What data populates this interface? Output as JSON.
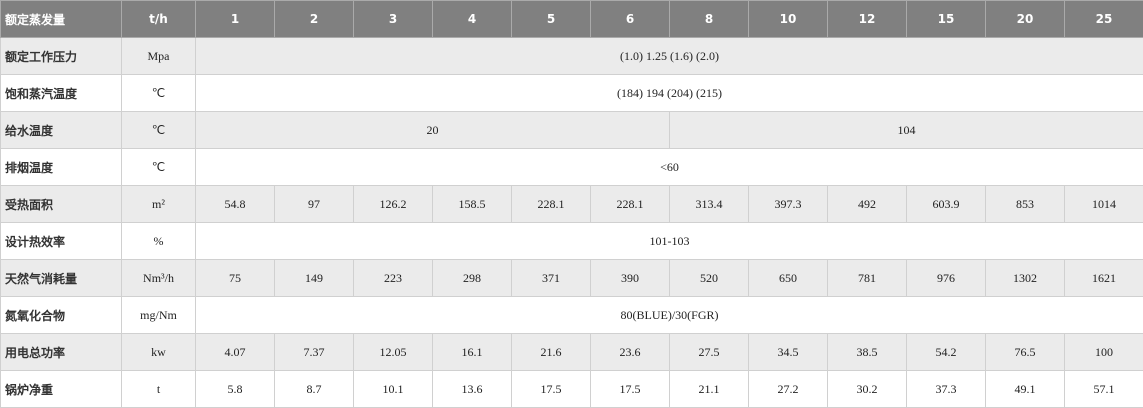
{
  "table": {
    "header": [
      "额定蒸发量",
      "t/h",
      "1",
      "2",
      "3",
      "4",
      "5",
      "6",
      "8",
      "10",
      "12",
      "15",
      "20",
      "25"
    ],
    "rows": [
      [
        "额定工作压力",
        "Mpa",
        "(1.0) 1.25 (1.6) (2.0)"
      ],
      [
        "饱和蒸汽温度",
        "℃",
        "(184) 194 (204) (215)"
      ],
      [
        "给水温度",
        "℃",
        "20",
        "104"
      ],
      [
        "排烟温度",
        "℃",
        "<60"
      ],
      [
        "受热面积",
        "m²",
        "54.8",
        "97",
        "126.2",
        "158.5",
        "228.1",
        "228.1",
        "313.4",
        "397.3",
        "492",
        "603.9",
        "853",
        "1014"
      ],
      [
        "设计热效率",
        "%",
        "101-103"
      ],
      [
        "天然气消耗量",
        "Nm³/h",
        "75",
        "149",
        "223",
        "298",
        "371",
        "390",
        "520",
        "650",
        "781",
        "976",
        "1302",
        "1621"
      ],
      [
        "氮氧化合物",
        "mg/Nm",
        "80(BLUE)/30(FGR)"
      ],
      [
        "用电总功率",
        "kw",
        "4.07",
        "7.37",
        "12.05",
        "16.1",
        "21.6",
        "23.6",
        "27.5",
        "34.5",
        "38.5",
        "54.2",
        "76.5",
        "100"
      ],
      [
        "锅炉净重",
        "t",
        "5.8",
        "8.7",
        "10.1",
        "13.6",
        "17.5",
        "17.5",
        "21.1",
        "27.2",
        "30.2",
        "37.3",
        "49.1",
        "57.1"
      ]
    ]
  }
}
